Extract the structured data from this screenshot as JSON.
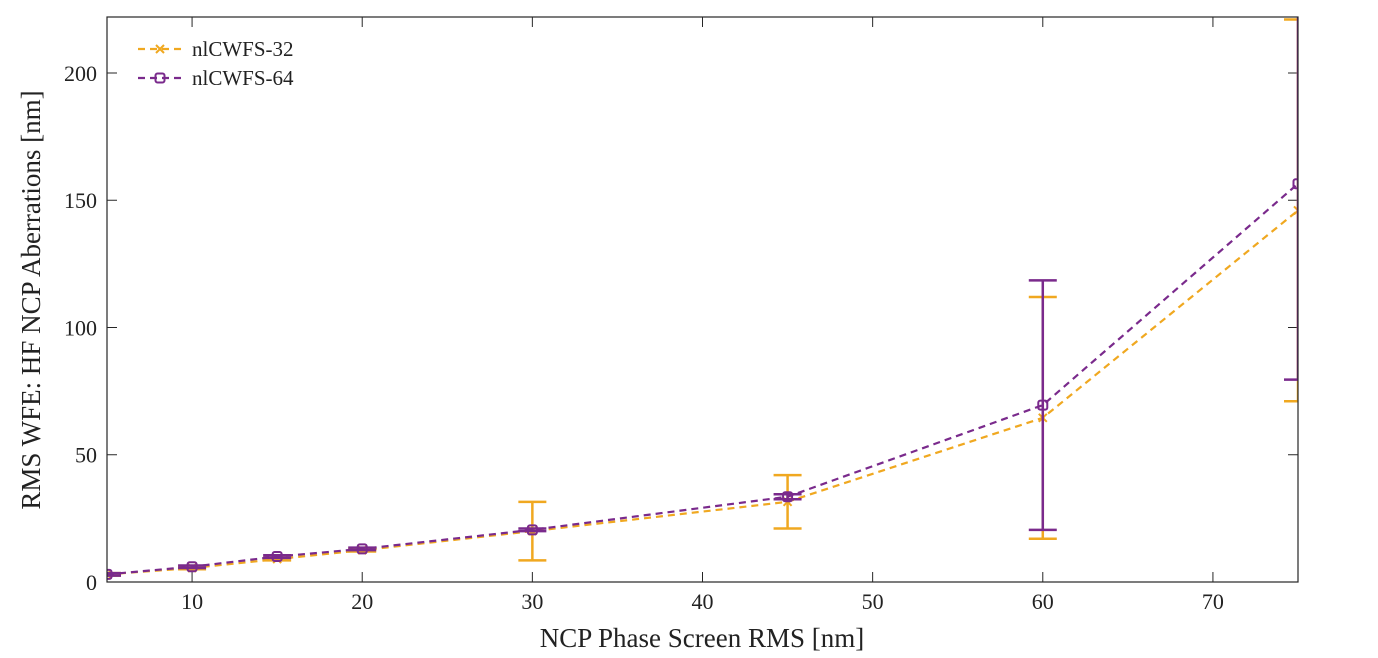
{
  "chart_data": {
    "type": "line",
    "title": "",
    "xlabel": "NCP Phase Screen RMS [nm]",
    "ylabel": "RMS WFE: HF NCP Aberrations [nm]",
    "xlim": [
      5,
      75
    ],
    "ylim": [
      0,
      222
    ],
    "xticks": [
      10,
      20,
      30,
      40,
      50,
      60,
      70
    ],
    "yticks": [
      0,
      50,
      100,
      150,
      200
    ],
    "grid": false,
    "legend_position": "top-left",
    "series": [
      {
        "name": "nlCWFS-32",
        "color": "#f0a820",
        "marker": "x",
        "linestyle": "dashed",
        "x": [
          5,
          10,
          15,
          20,
          30,
          45,
          60,
          75
        ],
        "y": [
          3,
          5.5,
          9,
          12.5,
          20,
          31.5,
          64.5,
          146
        ],
        "err_low": [
          2.5,
          5,
          8.5,
          12,
          8.5,
          21,
          17,
          71
        ],
        "err_high": [
          3.5,
          6,
          9.5,
          13,
          31.5,
          42,
          112,
          221
        ]
      },
      {
        "name": "nlCWFS-64",
        "color": "#7a2a8c",
        "marker": "square",
        "linestyle": "dashed",
        "x": [
          5,
          10,
          15,
          20,
          30,
          45,
          60,
          75
        ],
        "y": [
          3,
          6,
          10,
          13,
          20.5,
          33.5,
          69.5,
          156.5
        ],
        "err_low": [
          2.5,
          5.5,
          9.5,
          12.5,
          20,
          32.5,
          20.5,
          79.5
        ],
        "err_high": [
          3.5,
          6.5,
          10.5,
          13.5,
          21,
          34.5,
          118.5,
          235
        ]
      }
    ]
  }
}
